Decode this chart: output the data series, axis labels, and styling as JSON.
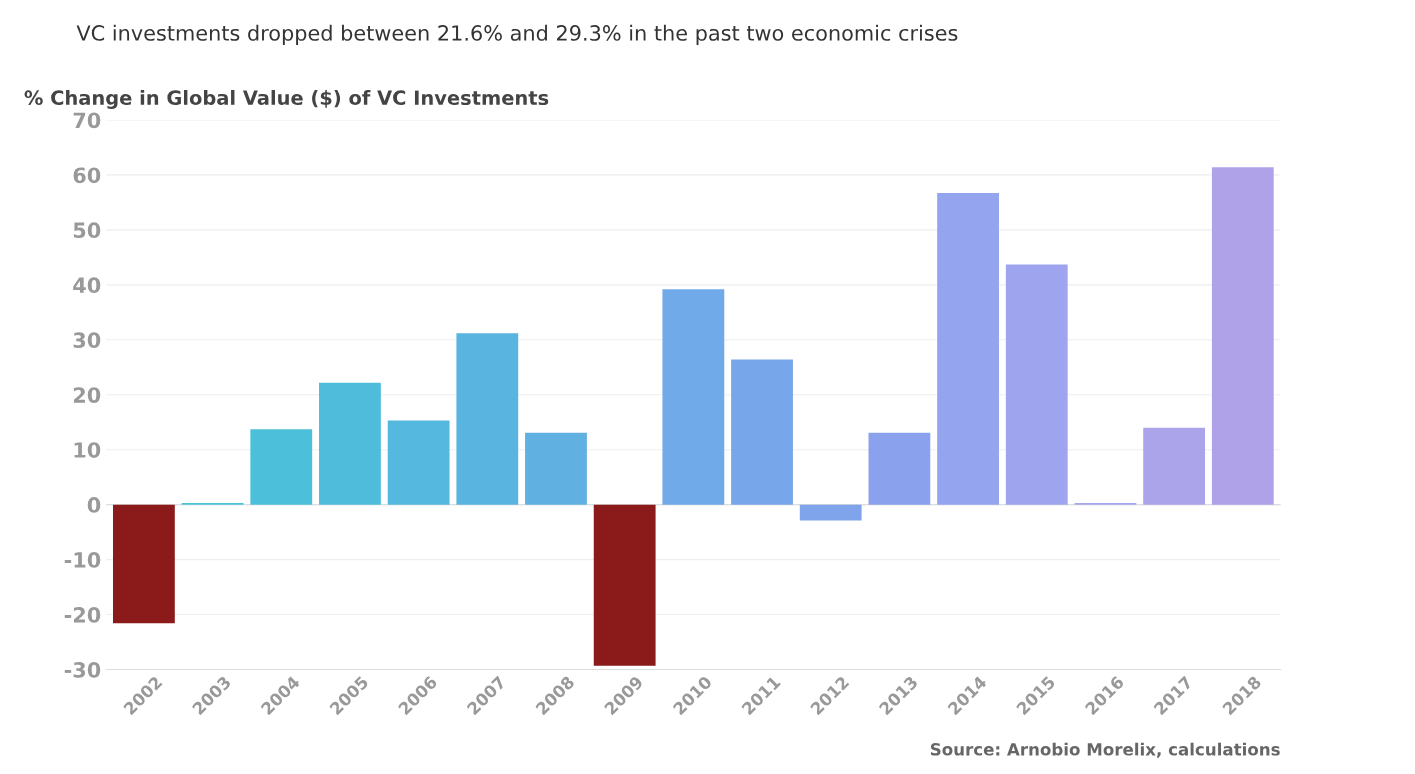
{
  "chart_data": {
    "type": "bar",
    "title": "VC investments dropped between 21.6% and 29.3% in the past two economic crises",
    "ylabel": "% Change in Global Value ($) of VC Investments",
    "categories": [
      "2002",
      "2003",
      "2004",
      "2005",
      "2006",
      "2007",
      "2008",
      "2009",
      "2010",
      "2011",
      "2012",
      "2013",
      "2014",
      "2015",
      "2016",
      "2017",
      "2018"
    ],
    "values": [
      -21.6,
      0.3,
      13.7,
      22.2,
      15.3,
      31.2,
      13.1,
      -29.3,
      39.2,
      26.4,
      -2.9,
      13.1,
      56.7,
      43.7,
      0.3,
      14.0,
      61.4
    ],
    "colors": [
      "#8b1a1a",
      "#4cc4d8",
      "#4cc0da",
      "#50bcdc",
      "#55b8de",
      "#5ab4e0",
      "#60b0e2",
      "#8b1a1a",
      "#70aae8",
      "#78a6ea",
      "#80a4ec",
      "#8aa2ee",
      "#94a4ee",
      "#9ea4ee",
      "#a6a4ec",
      "#aca4ea",
      "#b0a2e8"
    ],
    "ylim": [
      -30,
      70
    ],
    "yticks": [
      -30,
      -20,
      -10,
      0,
      10,
      20,
      30,
      40,
      50,
      60,
      70
    ],
    "grid": "y",
    "annotations": [
      "Source: Arnobio Morelix, calculations"
    ]
  }
}
